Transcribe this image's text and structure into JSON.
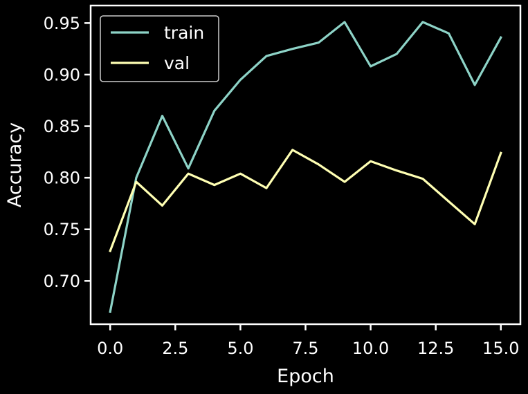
{
  "chart_data": {
    "type": "line",
    "title": "",
    "xlabel": "Epoch",
    "ylabel": "Accuracy",
    "xlim": [
      -0.75,
      15.75
    ],
    "ylim": [
      0.658,
      0.967
    ],
    "xticks": [
      0,
      2.5,
      5,
      7.5,
      10,
      12.5,
      15
    ],
    "xtick_labels": [
      "0.0",
      "2.5",
      "5.0",
      "7.5",
      "10.0",
      "12.5",
      "15.0"
    ],
    "yticks": [
      0.7,
      0.75,
      0.8,
      0.85,
      0.9,
      0.95
    ],
    "ytick_labels": [
      "0.70",
      "0.75",
      "0.80",
      "0.85",
      "0.90",
      "0.95"
    ],
    "grid": false,
    "legend_position": "top-left",
    "x": [
      0,
      1,
      2,
      3,
      4,
      5,
      6,
      7,
      8,
      9,
      10,
      11,
      12,
      13,
      14,
      15
    ],
    "series": [
      {
        "name": "train",
        "color": "#8dd3c7",
        "values": [
          0.67,
          0.8,
          0.86,
          0.809,
          0.865,
          0.895,
          0.918,
          0.925,
          0.931,
          0.951,
          0.908,
          0.92,
          0.951,
          0.94,
          0.89,
          0.936
        ]
      },
      {
        "name": "val",
        "color": "#ffffb3",
        "values": [
          0.729,
          0.796,
          0.773,
          0.804,
          0.793,
          0.804,
          0.79,
          0.827,
          0.813,
          0.796,
          0.816,
          0.807,
          0.799,
          0.777,
          0.755,
          0.824
        ]
      }
    ]
  }
}
